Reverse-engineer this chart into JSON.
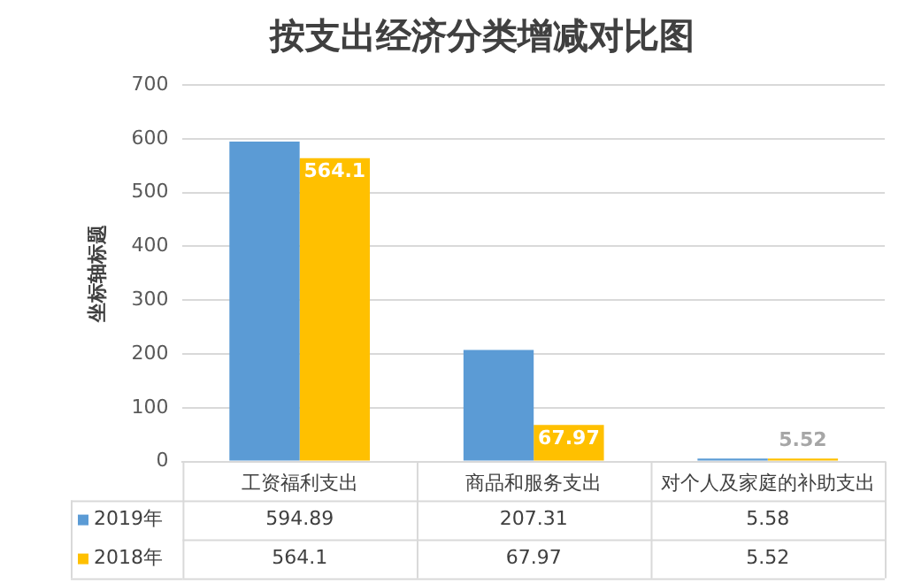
{
  "chart_data": {
    "type": "bar",
    "title": "按支出经济分类增减对比图",
    "ylabel": "坐标轴标题",
    "categories": [
      "工资福利支出",
      "商品和服务支出",
      "对个人及家庭的补助支出"
    ],
    "series": [
      {
        "name": "2019年",
        "color": "#5b9bd5",
        "values": [
          594.89,
          207.31,
          5.58
        ]
      },
      {
        "name": "2018年",
        "color": "#ffc000",
        "values": [
          564.1,
          67.97,
          5.52
        ],
        "value_labels": [
          "564.1",
          "67.97",
          "5.52"
        ]
      }
    ],
    "ylim": [
      0,
      700
    ],
    "yticks": [
      0,
      100,
      200,
      300,
      400,
      500,
      600,
      700
    ],
    "grid": "y",
    "legend": "bottom",
    "data_labels": true
  }
}
